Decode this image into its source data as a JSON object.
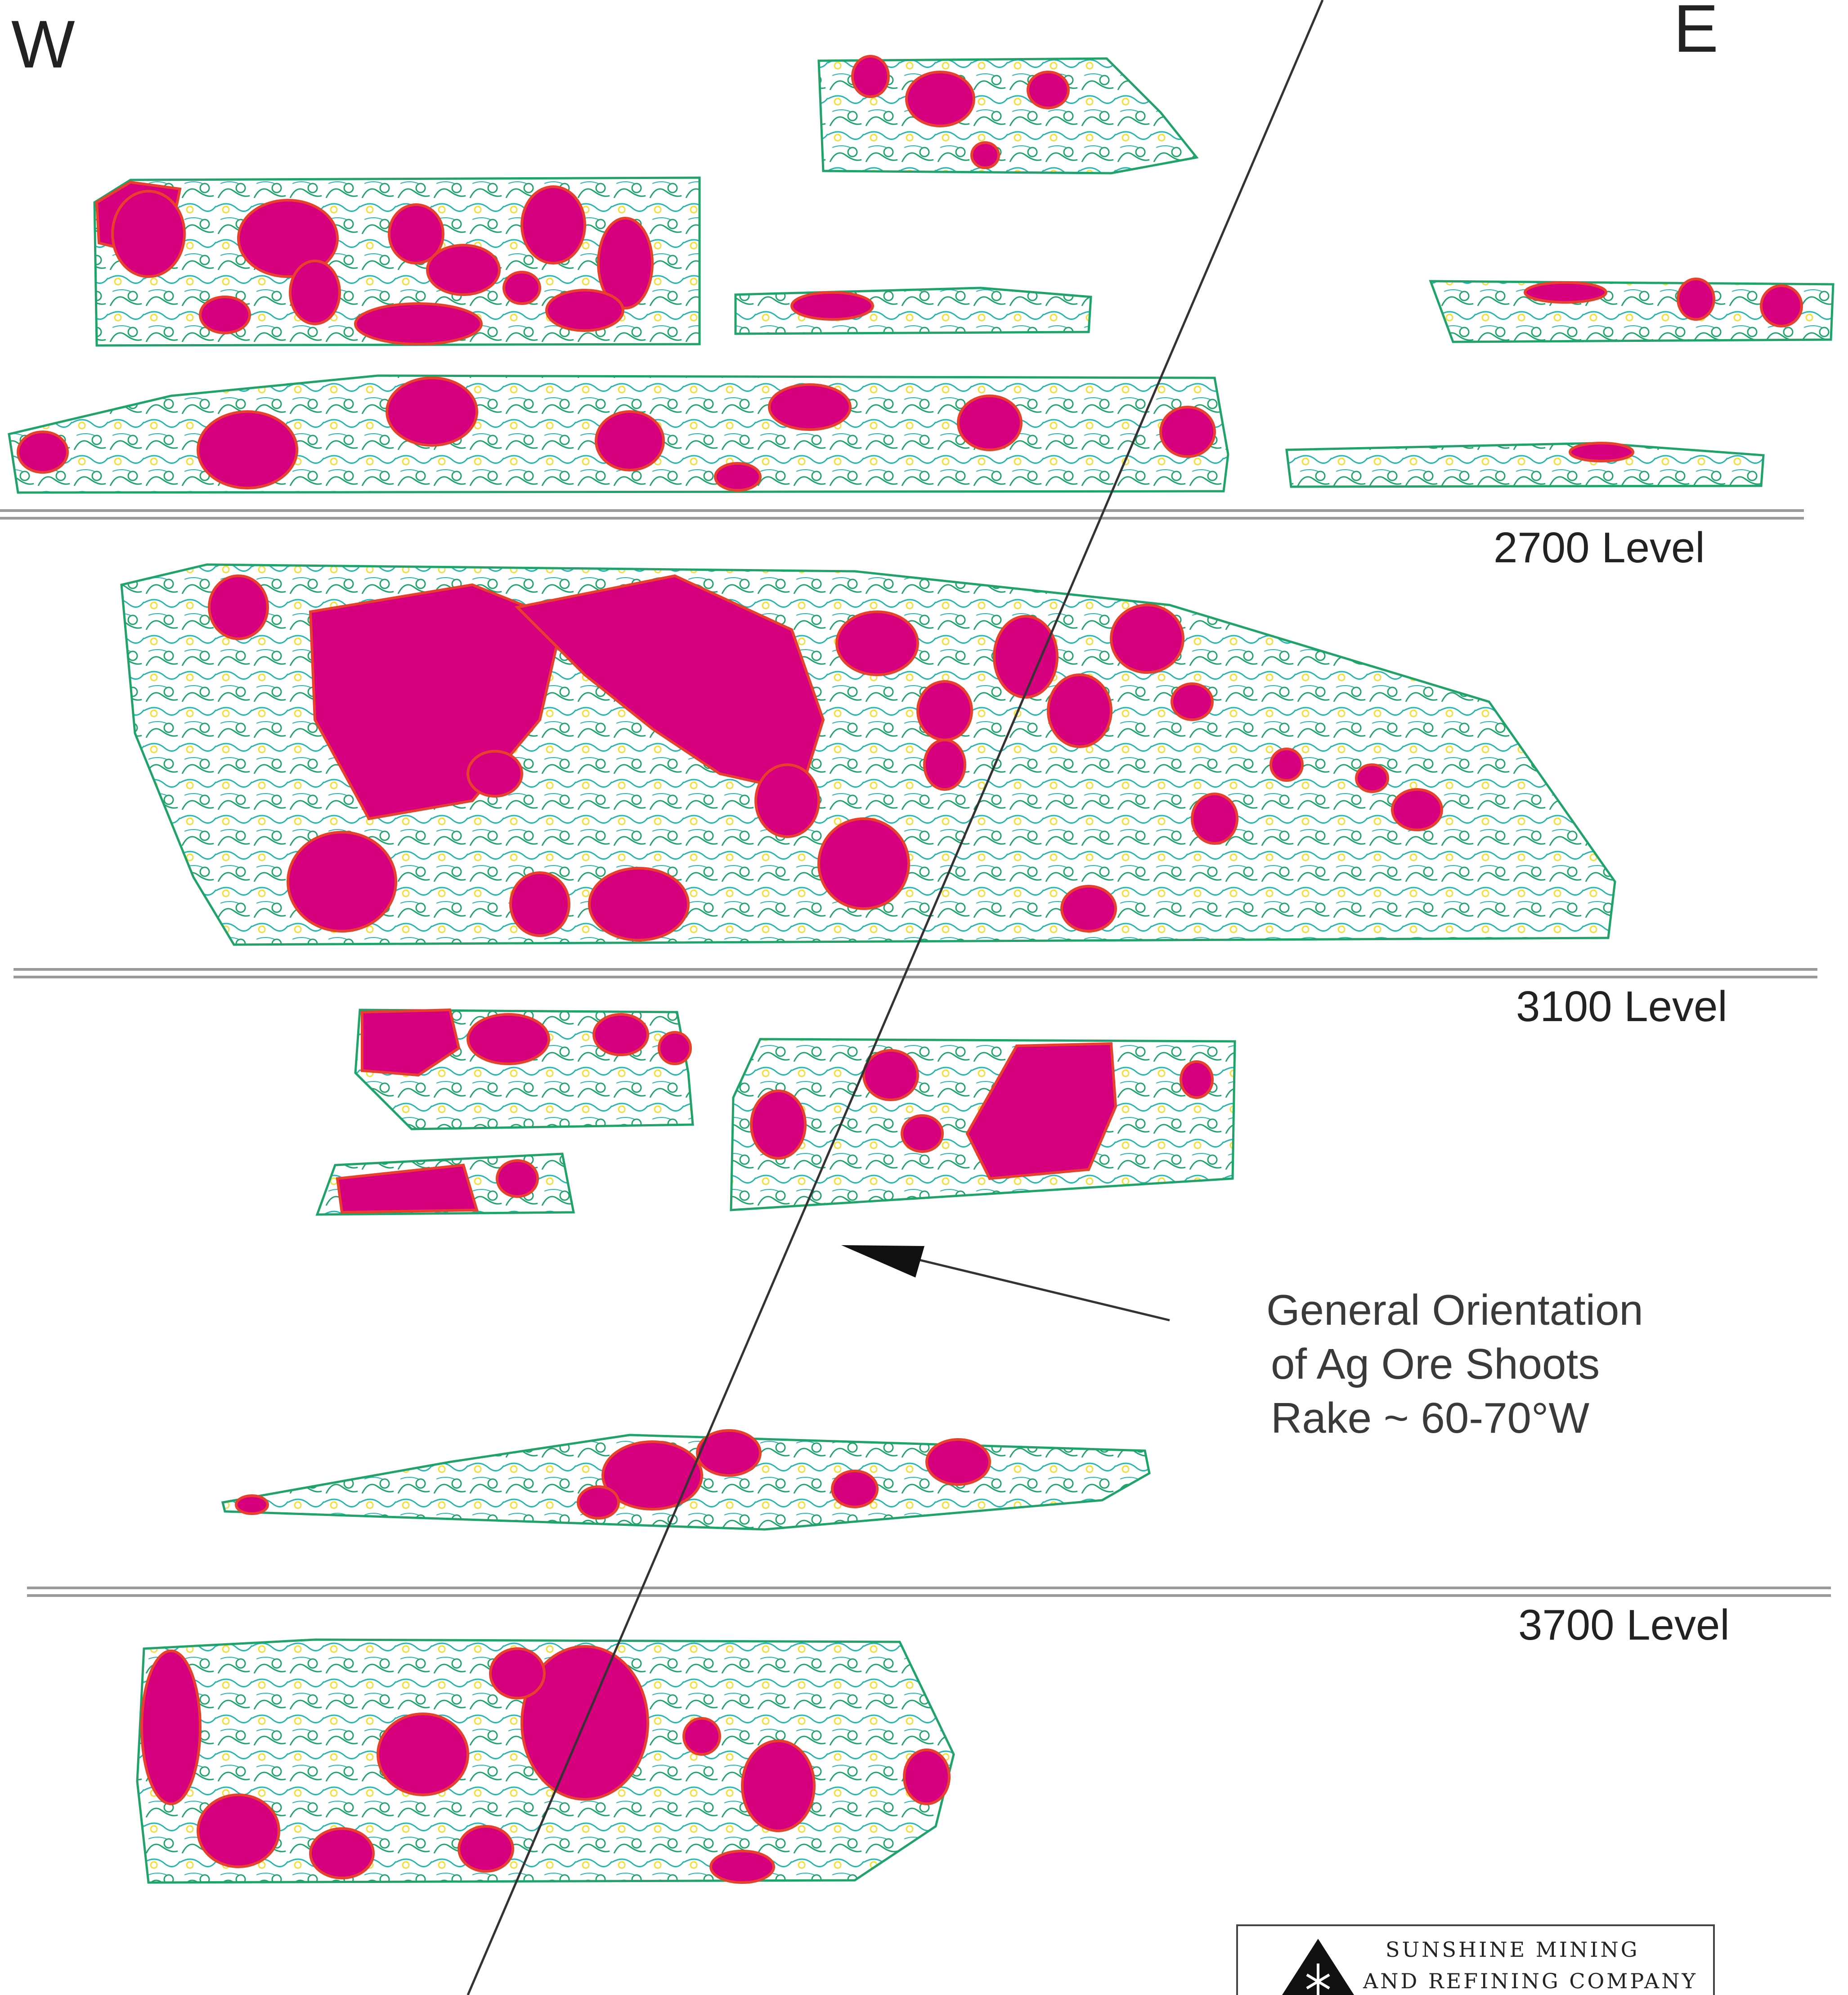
{
  "compass": {
    "west": "W",
    "east": "E"
  },
  "levels": [
    "2700 Level",
    "3100 Level",
    "3700 Level"
  ],
  "annotation": {
    "line1": "General Orientation",
    "line2": "of Ag Ore Shoots",
    "line3": "Rake ~ 60-70°W"
  },
  "company": {
    "line1": "Sunshine Mining",
    "line2": "and Refining Company"
  },
  "colors": {
    "high_grade": "#d6007f",
    "contour_green": "#1fa36a",
    "contour_teal": "#2bb3b0",
    "contour_yellow": "#f3df3c",
    "contour_red": "#e8402c",
    "level_line": "#9a9a9a"
  }
}
